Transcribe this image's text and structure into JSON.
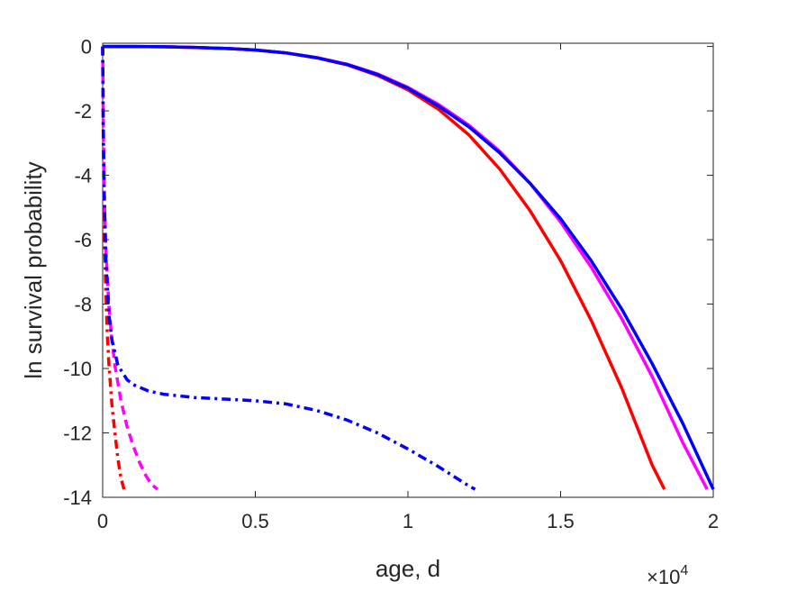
{
  "chart_data": {
    "type": "line",
    "title": "",
    "xlabel": "age, d",
    "ylabel": "ln survival probability",
    "x_multiplier_base": "×10",
    "x_multiplier_exp": "4",
    "xlim": [
      0,
      20000
    ],
    "ylim": [
      -14,
      0.1
    ],
    "xticks": [
      0,
      5000,
      10000,
      15000,
      20000
    ],
    "xtick_labels": [
      "0",
      "0.5",
      "1",
      "1.5",
      "2"
    ],
    "yticks": [
      0,
      -2,
      -4,
      -6,
      -8,
      -10,
      -12,
      -14
    ],
    "ytick_labels": [
      "0",
      "-2",
      "-4",
      "-6",
      "-8",
      "-10",
      "-12",
      "-14"
    ],
    "grid": false,
    "legend": "none",
    "series": [
      {
        "color": "#ff0000",
        "style": "solid",
        "x": [
          0,
          1000,
          2000,
          3000,
          4000,
          5000,
          6000,
          7000,
          8000,
          9000,
          10000,
          11000,
          12000,
          13000,
          14000,
          15000,
          16000,
          17000,
          18000,
          18400
        ],
        "y": [
          0,
          0,
          -0.01,
          -0.03,
          -0.06,
          -0.11,
          -0.2,
          -0.35,
          -0.57,
          -0.9,
          -1.35,
          -1.95,
          -2.75,
          -3.8,
          -5.1,
          -6.65,
          -8.5,
          -10.6,
          -13.0,
          -13.75
        ]
      },
      {
        "color": "#ff00ff",
        "style": "solid",
        "x": [
          0,
          1000,
          2000,
          3000,
          4000,
          5000,
          6000,
          7000,
          8000,
          9000,
          10000,
          11000,
          12000,
          13000,
          14000,
          15000,
          16000,
          17000,
          18000,
          19000,
          19800
        ],
        "y": [
          0,
          0,
          -0.01,
          -0.03,
          -0.06,
          -0.11,
          -0.2,
          -0.34,
          -0.55,
          -0.85,
          -1.27,
          -1.8,
          -2.45,
          -3.25,
          -4.25,
          -5.45,
          -6.85,
          -8.45,
          -10.25,
          -12.3,
          -13.75
        ]
      },
      {
        "color": "#0000ff",
        "style": "solid",
        "x": [
          0,
          1000,
          2000,
          3000,
          4000,
          5000,
          6000,
          7000,
          8000,
          9000,
          10000,
          11000,
          12000,
          13000,
          14000,
          15000,
          16000,
          17000,
          18000,
          19000,
          20000
        ],
        "y": [
          0,
          0,
          -0.01,
          -0.03,
          -0.06,
          -0.11,
          -0.2,
          -0.35,
          -0.56,
          -0.87,
          -1.3,
          -1.85,
          -2.5,
          -3.3,
          -4.25,
          -5.35,
          -6.65,
          -8.15,
          -9.85,
          -11.7,
          -13.75
        ]
      },
      {
        "color": "#ff0000",
        "style": "dashdot",
        "x": [
          0,
          20,
          50,
          100,
          150,
          200,
          300,
          400,
          500,
          600,
          700
        ],
        "y": [
          0,
          -3.0,
          -5.5,
          -7.6,
          -8.9,
          -9.8,
          -11.1,
          -12.0,
          -12.8,
          -13.4,
          -13.75
        ]
      },
      {
        "color": "#ff00ff",
        "style": "dashed",
        "x": [
          0,
          20,
          50,
          100,
          200,
          300,
          400,
          600,
          800,
          1000,
          1200,
          1400,
          1600,
          1800
        ],
        "y": [
          0,
          -2.5,
          -4.5,
          -6.2,
          -8.0,
          -9.1,
          -9.9,
          -11.0,
          -11.8,
          -12.4,
          -12.9,
          -13.3,
          -13.6,
          -13.75
        ]
      },
      {
        "color": "#0000ff",
        "style": "dashdot",
        "x": [
          0,
          20,
          50,
          100,
          200,
          300,
          500,
          800,
          1000,
          1500,
          2000,
          3000,
          4000,
          5000,
          6000,
          7000,
          8000,
          9000,
          10000,
          11000,
          12000,
          12200
        ],
        "y": [
          0,
          -2.5,
          -4.5,
          -6.5,
          -8.3,
          -9.1,
          -9.9,
          -10.35,
          -10.5,
          -10.7,
          -10.8,
          -10.9,
          -10.95,
          -11.0,
          -11.1,
          -11.3,
          -11.6,
          -12.0,
          -12.5,
          -13.05,
          -13.65,
          -13.75
        ]
      }
    ]
  }
}
